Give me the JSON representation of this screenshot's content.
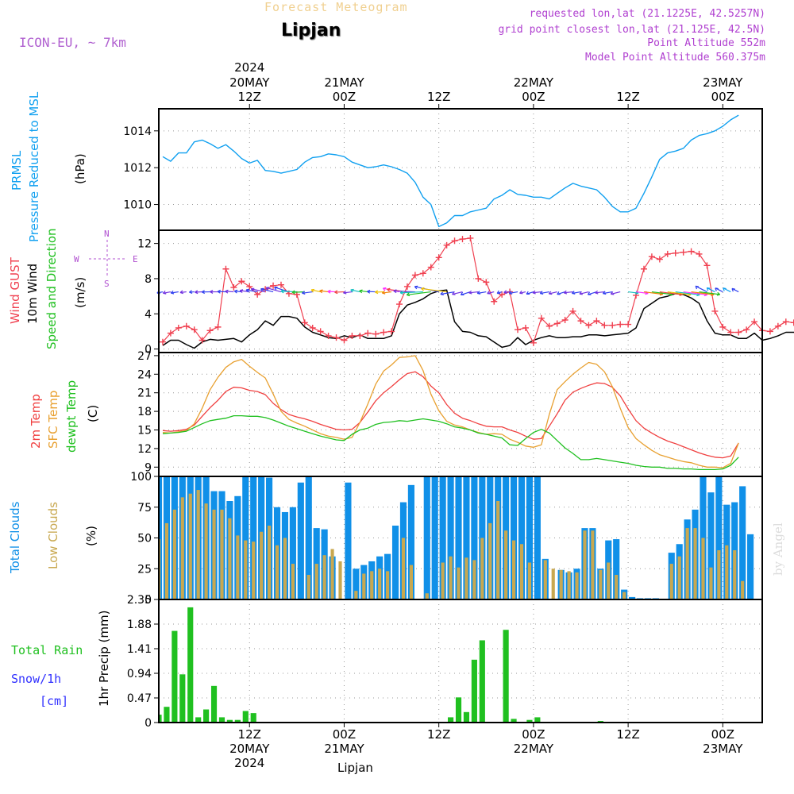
{
  "header": {
    "title": "Forecast Meteogram",
    "location": "Lipjan",
    "model": "ICON-EU, ~ 7km",
    "requested": "requested lon,lat (21.1225E, 42.5257N)",
    "grid": "grid point closest lon,lat (21.125E, 42.5N)",
    "altitude": "Point Altitude 552m",
    "model_altitude": "Model Point Altitude 560.375m"
  },
  "footer": {
    "location": "Lipjan",
    "credit": "by Angel"
  },
  "colors": {
    "prmsl": "#10a0f0",
    "gust": "#f04050",
    "wind": "#000000",
    "dir": "#20c020",
    "t2m": "#f04040",
    "tsfc": "#e8a030",
    "dew": "#20c020",
    "total_clouds": "#1090e8",
    "low_clouds": "#c8a850",
    "rain": "#20c020",
    "snow": "#3030ff",
    "compass": "#b050d0"
  },
  "time_axis": {
    "top": [
      {
        "hour": 0,
        "l1": "2024",
        "l2": "20MAY",
        "l3": "12Z"
      },
      {
        "hour": 12,
        "l1": "",
        "l2": "21MAY",
        "l3": "00Z"
      },
      {
        "hour": 24,
        "l1": "",
        "l2": "",
        "l3": "12Z"
      },
      {
        "hour": 36,
        "l1": "",
        "l2": "22MAY",
        "l3": "00Z"
      },
      {
        "hour": 48,
        "l1": "",
        "l2": "",
        "l3": "12Z"
      },
      {
        "hour": 60,
        "l1": "",
        "l2": "23MAY",
        "l3": "00Z"
      }
    ],
    "bottom": [
      {
        "hour": 0,
        "l1": "12Z",
        "l2": "20MAY",
        "l3": "2024"
      },
      {
        "hour": 12,
        "l1": "00Z",
        "l2": "21MAY",
        "l3": ""
      },
      {
        "hour": 24,
        "l1": "12Z",
        "l2": "",
        "l3": ""
      },
      {
        "hour": 36,
        "l1": "00Z",
        "l2": "22MAY",
        "l3": ""
      },
      {
        "hour": 48,
        "l1": "12Z",
        "l2": "",
        "l3": ""
      },
      {
        "hour": 60,
        "l1": "00Z",
        "l2": "23MAY",
        "l3": ""
      }
    ],
    "range": [
      -11.5,
      65
    ]
  },
  "panels": {
    "pressure": {
      "label1": "PRMSL",
      "label2": "Pressure Reduced to MSL",
      "unit": "(hPa)"
    },
    "wind": {
      "label_gust": "Wind GUST",
      "label_wind": "10m Wind",
      "label_dir": "Speed and Direction",
      "unit": "(m/s)",
      "compass": {
        "n": "N",
        "s": "S",
        "w": "W",
        "e": "E"
      }
    },
    "temp": {
      "label_t2m": "2m Temp",
      "label_sfc": "SFC Temp",
      "label_dew": "dewpt Temp",
      "unit": "(C)"
    },
    "clouds": {
      "label_total": "Total Clouds",
      "label_low": "Low Clouds",
      "unit": "(%)"
    },
    "precip": {
      "label_rain": "Total  Rain",
      "label_snow": "Snow/1h",
      "label_cm": "[cm]",
      "unit": "1hr Precip (mm)"
    }
  },
  "chart_data": [
    {
      "type": "line",
      "name": "pressure",
      "x_start_hour": -11,
      "x_step_hours": 1,
      "ylim": [
        1008.6,
        1015.2
      ],
      "yticks": [
        1010,
        1012,
        1014
      ],
      "series": [
        {
          "name": "PRMSL",
          "color": "#10a0f0",
          "values": [
            1012.6,
            1012.35,
            1012.8,
            1012.8,
            1013.4,
            1013.5,
            1013.3,
            1013.05,
            1013.25,
            1012.9,
            1012.5,
            1012.25,
            1012.4,
            1011.85,
            1011.8,
            1011.7,
            1011.8,
            1011.9,
            1012.3,
            1012.55,
            1012.6,
            1012.75,
            1012.7,
            1012.6,
            1012.3,
            1012.15,
            1012.0,
            1012.05,
            1012.15,
            1012.05,
            1011.9,
            1011.7,
            1011.2,
            1010.4,
            1010.0,
            1008.8,
            1009.0,
            1009.4,
            1009.4,
            1009.6,
            1009.7,
            1009.8,
            1010.3,
            1010.5,
            1010.8,
            1010.55,
            1010.5,
            1010.4,
            1010.4,
            1010.3,
            1010.6,
            1010.9,
            1011.15,
            1011.0,
            1010.9,
            1010.8,
            1010.4,
            1009.9,
            1009.6,
            1009.6,
            1009.8,
            1010.6,
            1011.5,
            1012.45,
            1012.8,
            1012.9,
            1013.05,
            1013.5,
            1013.75,
            1013.85,
            1014.0,
            1014.25,
            1014.6,
            1014.85
          ]
        }
      ]
    },
    {
      "type": "line",
      "name": "wind",
      "x_start_hour": -11,
      "x_step_hours": 1,
      "ylim": [
        -0.4,
        13.5
      ],
      "yticks": [
        0,
        4,
        8,
        12
      ],
      "series": [
        {
          "name": "Wind GUST",
          "color": "#f04050",
          "values": [
            0.8,
            1.8,
            2.4,
            2.6,
            2.2,
            1.0,
            2.1,
            2.5,
            9.1,
            7.0,
            7.7,
            7.1,
            6.2,
            6.8,
            7.2,
            7.3,
            6.3,
            6.2,
            3.0,
            2.4,
            2.0,
            1.5,
            1.3,
            1.0,
            1.5,
            1.5,
            1.8,
            1.7,
            1.9,
            2.0,
            5.1,
            7.1,
            8.4,
            8.6,
            9.3,
            10.4,
            11.8,
            12.3,
            12.5,
            12.6,
            8.0,
            7.6,
            5.4,
            6.2,
            6.5,
            2.2,
            2.4,
            0.7,
            3.5,
            2.6,
            2.9,
            3.3,
            4.3,
            3.2,
            2.7,
            3.2,
            2.7,
            2.7,
            2.8,
            2.8,
            6.1,
            9.1,
            10.5,
            10.2,
            10.8,
            10.9,
            11.0,
            11.1,
            10.8,
            9.5,
            4.3,
            2.5,
            1.9,
            1.9,
            2.2,
            3.1,
            2.1,
            2.0,
            2.6,
            3.1,
            3.0,
            2.6
          ]
        },
        {
          "name": "10m Wind",
          "color": "#000000",
          "values": [
            0.4,
            1.0,
            1.0,
            0.5,
            0.1,
            0.8,
            1.1,
            1.0,
            1.1,
            1.2,
            0.8,
            1.6,
            2.2,
            3.2,
            2.7,
            3.7,
            3.7,
            3.5,
            2.5,
            1.9,
            1.6,
            1.3,
            1.2,
            1.5,
            1.3,
            1.6,
            1.2,
            1.2,
            1.2,
            1.5,
            4.0,
            5.0,
            5.3,
            5.7,
            6.3,
            6.6,
            6.7,
            3.1,
            2.0,
            1.9,
            1.5,
            1.4,
            0.8,
            0.2,
            0.4,
            1.3,
            0.5,
            1.0,
            1.3,
            1.5,
            1.3,
            1.3,
            1.4,
            1.4,
            1.6,
            1.6,
            1.5,
            1.6,
            1.7,
            1.8,
            2.4,
            4.6,
            5.2,
            5.8,
            6.0,
            6.3,
            6.2,
            5.8,
            5.2,
            3.2,
            1.8,
            1.6,
            1.6,
            1.2,
            1.2,
            1.8,
            1.0,
            1.2,
            1.5,
            1.9,
            1.9,
            1.4
          ]
        }
      ],
      "direction_arrows": {
        "y_level": 6.5,
        "count": 74
      }
    },
    {
      "type": "line",
      "name": "temperature",
      "x_start_hour": -11,
      "x_step_hours": 1,
      "ylim": [
        7.5,
        27.5
      ],
      "yticks": [
        9,
        12,
        15,
        18,
        21,
        24,
        27
      ],
      "series": [
        {
          "name": "2m Temp",
          "color": "#f04040",
          "values": [
            14.9,
            14.8,
            14.9,
            15.1,
            15.8,
            17.2,
            18.6,
            19.8,
            21.2,
            21.9,
            21.8,
            21.4,
            21.2,
            20.7,
            19.3,
            18.3,
            17.5,
            17.1,
            16.8,
            16.4,
            15.9,
            15.5,
            15.1,
            15.0,
            15.1,
            16.2,
            17.9,
            19.7,
            21.0,
            22.0,
            23.1,
            24.1,
            24.4,
            23.6,
            22.1,
            21.0,
            19.1,
            17.7,
            16.9,
            16.5,
            16.0,
            15.6,
            15.5,
            15.5,
            15.0,
            14.6,
            14.0,
            13.5,
            13.6,
            15.6,
            17.6,
            19.8,
            21.1,
            21.7,
            22.2,
            22.6,
            22.5,
            21.9,
            20.5,
            18.4,
            16.5,
            15.3,
            14.5,
            13.8,
            13.2,
            12.8,
            12.3,
            11.8,
            11.3,
            10.9,
            10.6,
            10.5,
            10.8,
            12.9
          ]
        },
        {
          "name": "SFC Temp",
          "color": "#e8a030",
          "values": [
            14.6,
            14.5,
            14.7,
            14.9,
            16.0,
            18.5,
            21.5,
            23.5,
            25.1,
            26.0,
            26.4,
            25.3,
            24.3,
            23.4,
            20.8,
            18.0,
            16.7,
            16.1,
            15.6,
            15.0,
            14.4,
            14.0,
            13.8,
            13.5,
            13.8,
            16.2,
            19.2,
            22.4,
            24.5,
            25.5,
            26.7,
            26.8,
            27.0,
            24.6,
            20.8,
            18.1,
            16.4,
            15.8,
            15.5,
            15.0,
            14.6,
            14.3,
            14.4,
            14.3,
            13.5,
            13.0,
            12.4,
            12.2,
            12.6,
            17.5,
            21.5,
            22.8,
            24.0,
            25.0,
            25.9,
            25.6,
            24.4,
            22.0,
            18.5,
            15.4,
            13.6,
            12.6,
            11.7,
            11.0,
            10.6,
            10.2,
            9.9,
            9.7,
            9.3,
            9.0,
            9.0,
            8.9,
            9.6,
            12.9
          ]
        },
        {
          "name": "dewpt Temp",
          "color": "#20c020",
          "values": [
            14.4,
            14.5,
            14.6,
            14.8,
            15.4,
            16.0,
            16.5,
            16.7,
            16.9,
            17.3,
            17.3,
            17.2,
            17.2,
            17.0,
            16.6,
            16.1,
            15.6,
            15.2,
            14.8,
            14.4,
            14.0,
            13.7,
            13.4,
            13.3,
            14.3,
            15.0,
            15.3,
            15.9,
            16.2,
            16.3,
            16.5,
            16.4,
            16.6,
            16.8,
            16.6,
            16.4,
            16.0,
            15.5,
            15.3,
            15.0,
            14.5,
            14.3,
            14.0,
            13.7,
            12.6,
            12.5,
            13.6,
            14.6,
            15.1,
            14.5,
            13.3,
            12.1,
            11.2,
            10.2,
            10.2,
            10.4,
            10.2,
            10.0,
            9.8,
            9.6,
            9.3,
            9.1,
            9.0,
            9.0,
            8.8,
            8.8,
            8.7,
            8.7,
            8.6,
            8.6,
            8.6,
            8.7,
            9.3,
            10.6
          ]
        }
      ]
    },
    {
      "type": "bar",
      "name": "clouds",
      "x_start_hour": -11.5,
      "x_step_hours": 1,
      "ylim": [
        0,
        100
      ],
      "yticks": [
        0,
        25,
        50,
        75,
        100
      ],
      "series": [
        {
          "name": "Total Clouds",
          "color": "#1090e8",
          "values": [
            100,
            100,
            100,
            100,
            100,
            100,
            100,
            88,
            88,
            80,
            84,
            100,
            100,
            100,
            99,
            75,
            71,
            75,
            95,
            100,
            58,
            57,
            35,
            0,
            95,
            25,
            28,
            31,
            35,
            37,
            60,
            79,
            93,
            0,
            100,
            100,
            100,
            100,
            100,
            100,
            100,
            100,
            100,
            100,
            100,
            100,
            100,
            100,
            100,
            33,
            0,
            24,
            22,
            25,
            58,
            58,
            25,
            48,
            49,
            8,
            2,
            1,
            1,
            1,
            0,
            38,
            45,
            65,
            73,
            100,
            87,
            100,
            77,
            79,
            92,
            53
          ]
        },
        {
          "name": "Low Clouds",
          "color": "#c8a850",
          "values": [
            49,
            62,
            73,
            83,
            86,
            89,
            78,
            73,
            73,
            66,
            52,
            48,
            47,
            55,
            60,
            44,
            50,
            29,
            0,
            20,
            29,
            36,
            41,
            31,
            0,
            7,
            21,
            23,
            25,
            23,
            0,
            50,
            28,
            0,
            5,
            0,
            30,
            35,
            26,
            34,
            32,
            50,
            62,
            80,
            56,
            48,
            45,
            30,
            0,
            32,
            25,
            24,
            23,
            22,
            56,
            56,
            24,
            30,
            20,
            6,
            0,
            0,
            0,
            0,
            0,
            29,
            35,
            58,
            58,
            50,
            26,
            40,
            44,
            40,
            15,
            0
          ]
        }
      ]
    },
    {
      "type": "bar",
      "name": "precipitation",
      "x_start_hour": -11.5,
      "x_step_hours": 1,
      "ylim": [
        0,
        2.35
      ],
      "yticks": [
        0,
        0.47,
        0.94,
        1.41,
        1.88,
        2.35
      ],
      "series": [
        {
          "name": "Total Rain",
          "color": "#20c020",
          "values": [
            0.15,
            0.3,
            1.75,
            0.92,
            2.2,
            0.1,
            0.25,
            0.7,
            0.1,
            0.05,
            0.05,
            0.22,
            0.18,
            0,
            0,
            0,
            0,
            0,
            0,
            0,
            0,
            0,
            0,
            0,
            0,
            0,
            0,
            0,
            0,
            0,
            0,
            0,
            0,
            0,
            0,
            0,
            0,
            0.1,
            0.48,
            0.2,
            1.2,
            1.57,
            0,
            0,
            1.77,
            0.07,
            0,
            0.05,
            0.1,
            0,
            0,
            0,
            0,
            0,
            0,
            0,
            0.03,
            0,
            0,
            0,
            0,
            0,
            0,
            0,
            0,
            0,
            0,
            0,
            0,
            0,
            0,
            0,
            0,
            0,
            0,
            0
          ]
        }
      ]
    }
  ]
}
